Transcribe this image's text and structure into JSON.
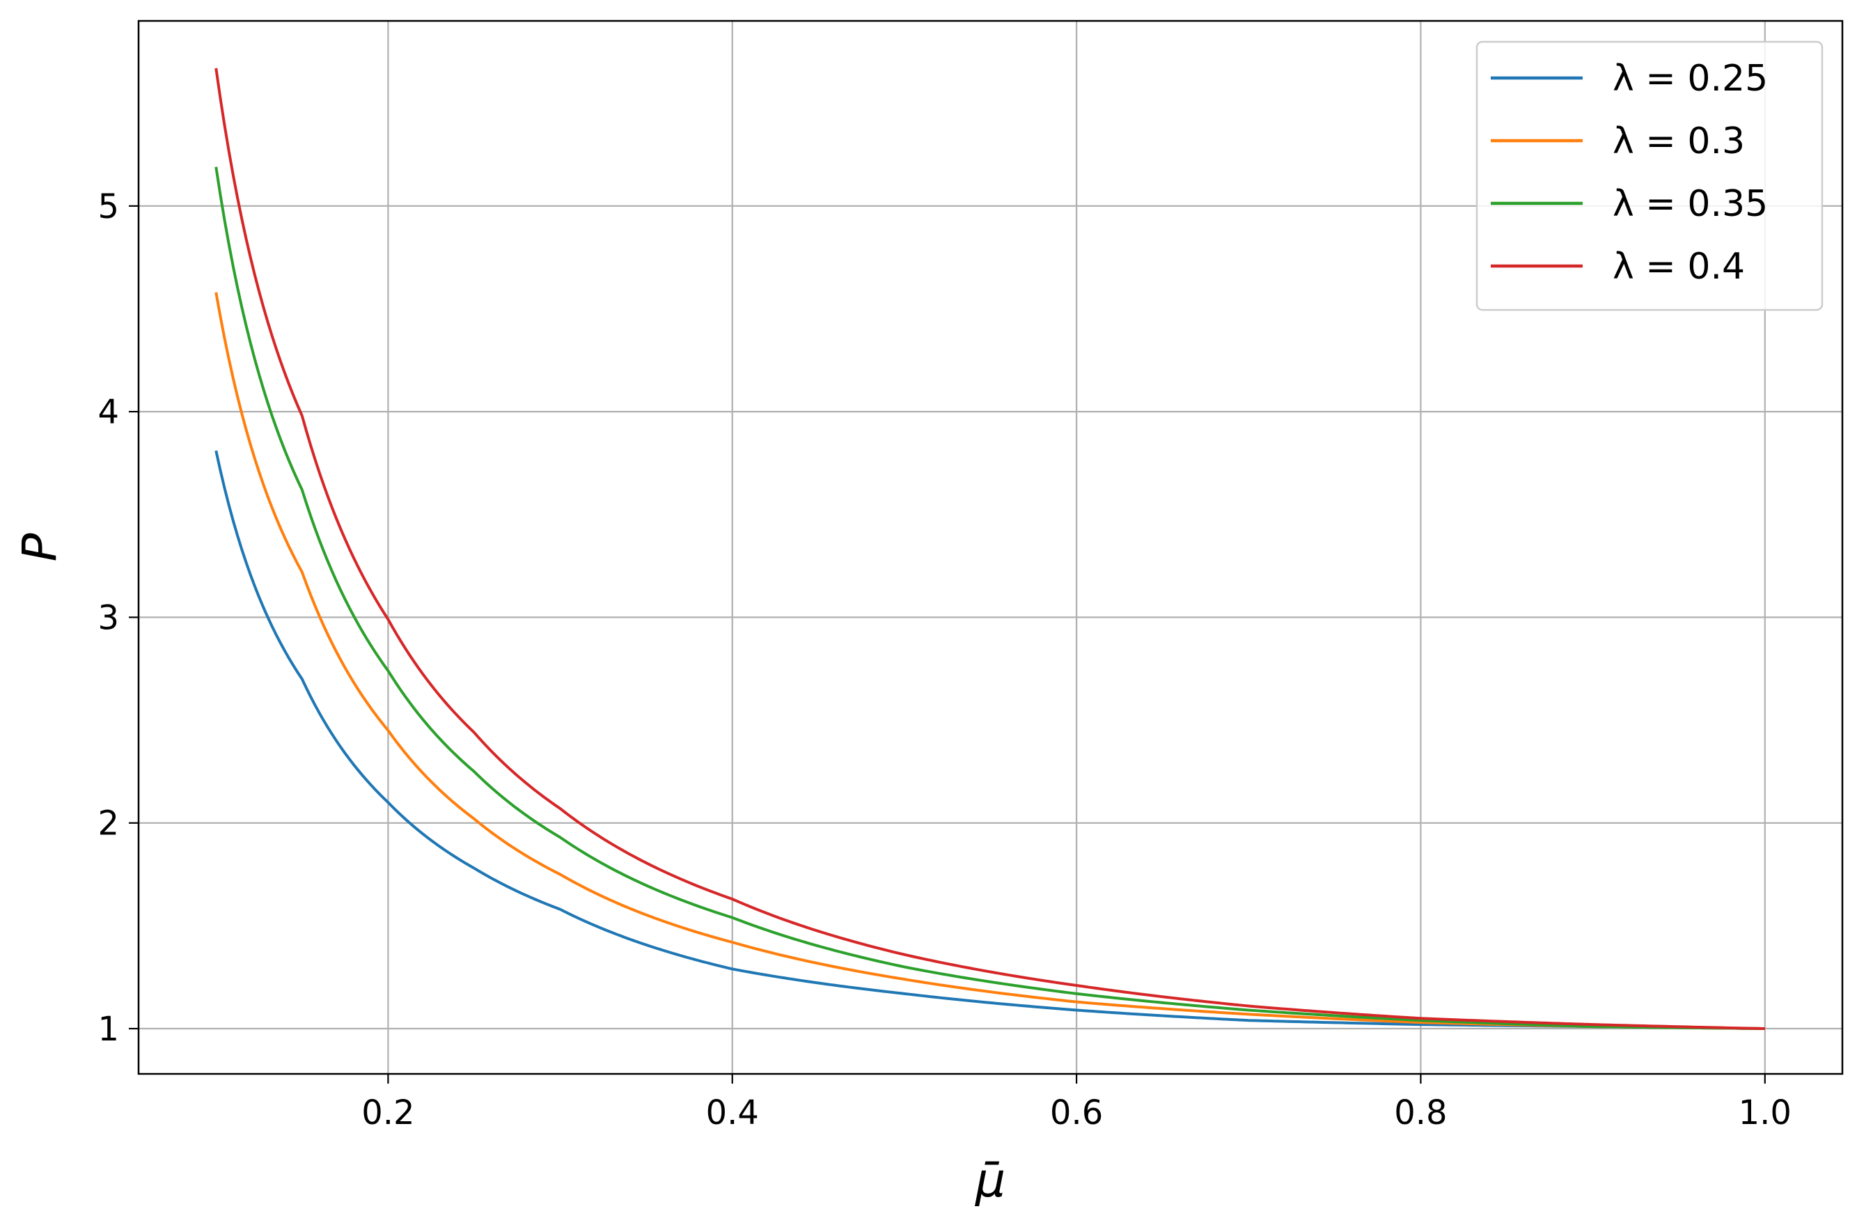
{
  "chart_data": {
    "type": "line",
    "title": "",
    "xlabel": "μ̄",
    "ylabel": "P",
    "xlim": [
      0.055,
      1.045
    ],
    "ylim": [
      0.78,
      5.9
    ],
    "xticks": [
      0.2,
      0.4,
      0.6,
      0.8,
      1.0
    ],
    "xtick_labels": [
      "0.2",
      "0.4",
      "0.6",
      "0.8",
      "1.0"
    ],
    "yticks": [
      1,
      2,
      3,
      4,
      5
    ],
    "ytick_labels": [
      "1",
      "2",
      "3",
      "4",
      "5"
    ],
    "grid": true,
    "legend_position": "top-right",
    "x_range": [
      0.1,
      1.0
    ],
    "series": [
      {
        "name": "λ =  0.25",
        "lambda": 0.25,
        "color": "#1f77b4",
        "points": [
          [
            0.1,
            3.81
          ],
          [
            0.15,
            2.7
          ],
          [
            0.2,
            2.1
          ],
          [
            0.25,
            1.78
          ],
          [
            0.3,
            1.58
          ],
          [
            0.4,
            1.29
          ],
          [
            0.5,
            1.17
          ],
          [
            0.6,
            1.09
          ],
          [
            0.7,
            1.04
          ],
          [
            0.8,
            1.02
          ],
          [
            0.9,
            1.01
          ],
          [
            1.0,
            1.0
          ]
        ]
      },
      {
        "name": "λ =  0.3",
        "lambda": 0.3,
        "color": "#ff7f0e",
        "points": [
          [
            0.1,
            4.58
          ],
          [
            0.15,
            3.22
          ],
          [
            0.2,
            2.45
          ],
          [
            0.25,
            2.02
          ],
          [
            0.3,
            1.75
          ],
          [
            0.4,
            1.42
          ],
          [
            0.5,
            1.24
          ],
          [
            0.6,
            1.13
          ],
          [
            0.7,
            1.07
          ],
          [
            0.8,
            1.03
          ],
          [
            0.9,
            1.01
          ],
          [
            1.0,
            1.0
          ]
        ]
      },
      {
        "name": "λ =  0.35",
        "lambda": 0.35,
        "color": "#2ca02c",
        "points": [
          [
            0.1,
            5.19
          ],
          [
            0.15,
            3.62
          ],
          [
            0.2,
            2.74
          ],
          [
            0.25,
            2.25
          ],
          [
            0.3,
            1.93
          ],
          [
            0.4,
            1.54
          ],
          [
            0.5,
            1.3
          ],
          [
            0.6,
            1.17
          ],
          [
            0.7,
            1.09
          ],
          [
            0.8,
            1.04
          ],
          [
            0.9,
            1.01
          ],
          [
            1.0,
            1.0
          ]
        ]
      },
      {
        "name": "λ =  0.4",
        "lambda": 0.4,
        "color": "#d62728",
        "points": [
          [
            0.1,
            5.67
          ],
          [
            0.15,
            3.98
          ],
          [
            0.2,
            2.99
          ],
          [
            0.25,
            2.44
          ],
          [
            0.3,
            2.07
          ],
          [
            0.4,
            1.63
          ],
          [
            0.5,
            1.36
          ],
          [
            0.6,
            1.21
          ],
          [
            0.7,
            1.11
          ],
          [
            0.8,
            1.05
          ],
          [
            0.9,
            1.02
          ],
          [
            1.0,
            1.0
          ]
        ]
      }
    ]
  }
}
